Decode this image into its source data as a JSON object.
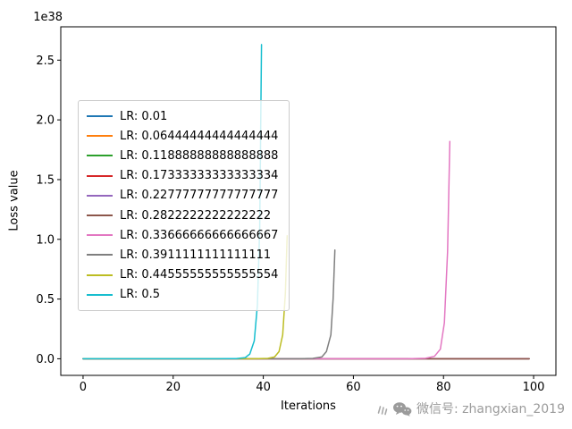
{
  "chart_data": {
    "type": "line",
    "title": "",
    "xlabel": "Iterations",
    "ylabel": "Loss value",
    "offset_text": "1e38",
    "y_unit": "1e38",
    "grid": false,
    "legend_position": "center-left",
    "xlim": [
      -4.95,
      104.95
    ],
    "ylim": [
      -0.139,
      2.779
    ],
    "xticks": [
      0,
      20,
      40,
      60,
      80,
      100
    ],
    "xtick_labels": [
      "0",
      "20",
      "40",
      "60",
      "80",
      "100"
    ],
    "yticks": [
      0,
      0.5,
      1,
      1.5,
      2,
      2.5
    ],
    "ytick_labels": [
      "0.0",
      "0.5",
      "1.0",
      "1.5",
      "2.0",
      "2.5"
    ],
    "series": [
      {
        "label": "LR: 0.01",
        "color": "#1f77b4",
        "points": [
          [
            0,
            0
          ],
          [
            99,
            0
          ]
        ]
      },
      {
        "label": "LR: 0.06444444444444444",
        "color": "#ff7f0e",
        "points": [
          [
            0,
            0
          ],
          [
            99,
            0
          ]
        ]
      },
      {
        "label": "LR: 0.11888888888888888",
        "color": "#2ca02c",
        "points": [
          [
            0,
            0
          ],
          [
            99,
            0
          ]
        ]
      },
      {
        "label": "LR: 0.17333333333333334",
        "color": "#d62728",
        "points": [
          [
            0,
            0
          ],
          [
            99,
            0
          ]
        ]
      },
      {
        "label": "LR: 0.22777777777777777",
        "color": "#9467bd",
        "points": [
          [
            0,
            0
          ],
          [
            99,
            0
          ]
        ]
      },
      {
        "label": "LR: 0.2822222222222222",
        "color": "#8c564b",
        "points": [
          [
            0,
            0
          ],
          [
            99,
            0
          ]
        ]
      },
      {
        "label": "LR: 0.33666666666666667",
        "color": "#e377c2",
        "points": [
          [
            0,
            0
          ],
          [
            72,
            0
          ],
          [
            76,
            0.004
          ],
          [
            78,
            0.02
          ],
          [
            79.3,
            0.08
          ],
          [
            80.2,
            0.3
          ],
          [
            80.9,
            0.9
          ],
          [
            81.4,
            1.82
          ]
        ]
      },
      {
        "label": "LR: 0.3911111111111111",
        "color": "#7f7f7f",
        "points": [
          [
            0,
            0
          ],
          [
            48,
            0
          ],
          [
            51,
            0.003
          ],
          [
            53,
            0.015
          ],
          [
            54,
            0.06
          ],
          [
            55,
            0.2
          ],
          [
            55.5,
            0.5
          ],
          [
            55.9,
            0.91
          ]
        ]
      },
      {
        "label": "LR: 0.44555555555555554",
        "color": "#bcbd22",
        "points": [
          [
            0,
            0
          ],
          [
            38,
            0
          ],
          [
            41,
            0.003
          ],
          [
            42.5,
            0.015
          ],
          [
            43.5,
            0.06
          ],
          [
            44.3,
            0.2
          ],
          [
            44.9,
            0.55
          ],
          [
            45.3,
            1.03
          ]
        ]
      },
      {
        "label": "LR: 0.5",
        "color": "#17becf",
        "points": [
          [
            0,
            0
          ],
          [
            30,
            0
          ],
          [
            34,
            0.002
          ],
          [
            36,
            0.01
          ],
          [
            37,
            0.04
          ],
          [
            38,
            0.15
          ],
          [
            38.7,
            0.45
          ],
          [
            39.2,
            1.1
          ],
          [
            39.6,
            2.63
          ]
        ]
      }
    ]
  },
  "watermark": {
    "text": "微信号: zhangxian_2019",
    "color": "#9b9b9b"
  }
}
